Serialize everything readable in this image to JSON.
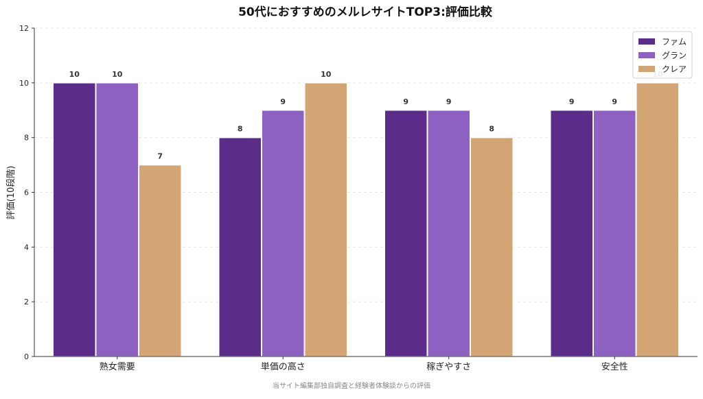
{
  "chart_data": {
    "type": "bar",
    "title": "50代におすすめのメルレサイトTOP3:評価比較",
    "xlabel": "",
    "ylabel": "評価(10段階)",
    "ylim": [
      0,
      12
    ],
    "yticks": [
      0,
      2,
      4,
      6,
      8,
      10,
      12
    ],
    "grid": true,
    "legend_position": "top-right",
    "categories": [
      "熟女需要",
      "単価の高さ",
      "稼ぎやすさ",
      "安全性"
    ],
    "series": [
      {
        "name": "ファム",
        "color": "#5b2c8a",
        "values": [
          10,
          8,
          9,
          9
        ]
      },
      {
        "name": "グラン",
        "color": "#8c61c2",
        "values": [
          10,
          9,
          9,
          9
        ]
      },
      {
        "name": "クレア",
        "color": "#d4a574",
        "values": [
          7,
          10,
          8,
          10
        ]
      }
    ],
    "footnote": "当サイト編集部独自調査と経験者体験談からの評価"
  }
}
